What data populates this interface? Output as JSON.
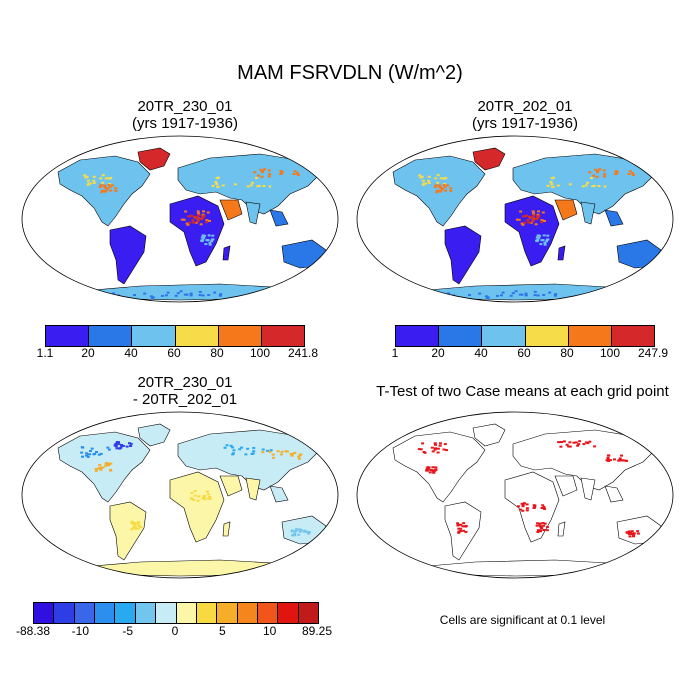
{
  "title": "MAM FSRVDLN (W/m^2)",
  "panels": [
    {
      "id": "case1",
      "title_line1": "20TR_230_01",
      "title_line2": "(yrs 1917-1936)"
    },
    {
      "id": "case2",
      "title_line1": "20TR_202_01",
      "title_line2": "(yrs 1917-1936)"
    },
    {
      "id": "diff",
      "title_line1": "20TR_230_01",
      "title_line2": "- 20TR_202_01"
    },
    {
      "id": "ttest",
      "title_line1": "T-Test of two Case means at each grid point"
    }
  ],
  "colorbars": {
    "case1": {
      "colors": [
        "#3a1df0",
        "#2a78e8",
        "#6ec3ee",
        "#f7dc4a",
        "#f5781a",
        "#d4282a"
      ],
      "labels": [
        "1.1",
        "20",
        "40",
        "60",
        "80",
        "100",
        "241.8"
      ]
    },
    "case2": {
      "colors": [
        "#3a1df0",
        "#2a78e8",
        "#6ec3ee",
        "#f7dc4a",
        "#f5781a",
        "#d4282a"
      ],
      "labels": [
        "1",
        "20",
        "40",
        "60",
        "80",
        "100",
        "247.9"
      ]
    },
    "diff": {
      "colors": [
        "#3010e0",
        "#2e3ee6",
        "#3a66ea",
        "#2c8ff0",
        "#29a9f0",
        "#72c6ee",
        "#c8ecf6",
        "#fcf6a8",
        "#f7d941",
        "#f5ad2a",
        "#f5861e",
        "#f0561c",
        "#e01510",
        "#c01a1a"
      ],
      "labels": [
        "-88.38",
        "-10",
        "-5",
        "0",
        "5",
        "10",
        "89.25"
      ]
    }
  },
  "footnote": "Cells are significant at 0.1 level",
  "legend_colors": {
    "ttest": "#e8141a",
    "ocean": "#ffffff",
    "outline": "#000000"
  }
}
